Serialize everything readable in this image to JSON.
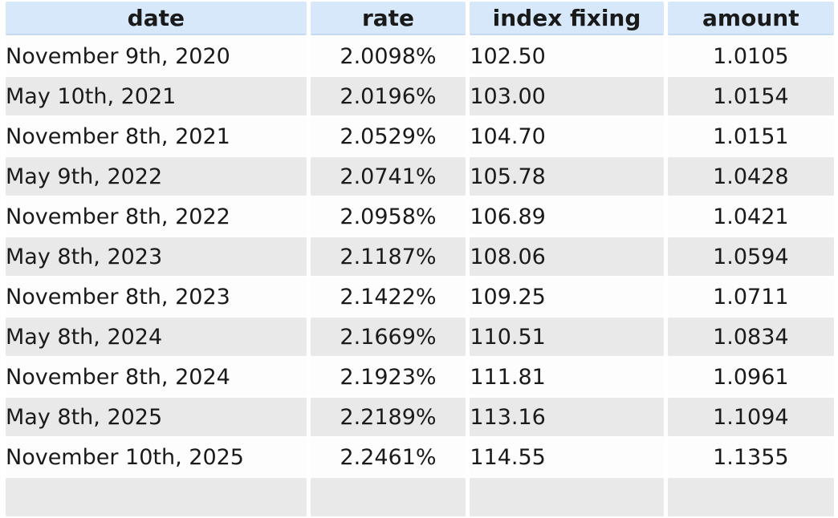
{
  "chart_data": {
    "type": "table",
    "columns": [
      "date",
      "rate",
      "index fixing",
      "amount"
    ],
    "column_keys": [
      "date",
      "rate",
      "index-fixing",
      "amount"
    ],
    "rows": [
      [
        "November 9th, 2020",
        "2.0098%",
        "102.50",
        "1.0105"
      ],
      [
        "May 10th, 2021",
        "2.0196%",
        "103.00",
        "1.0154"
      ],
      [
        "November 8th, 2021",
        "2.0529%",
        "104.70",
        "1.0151"
      ],
      [
        "May 9th, 2022",
        "2.0741%",
        "105.78",
        "1.0428"
      ],
      [
        "November 8th, 2022",
        "2.0958%",
        "106.89",
        "1.0421"
      ],
      [
        "May 8th, 2023",
        "2.1187%",
        "108.06",
        "1.0594"
      ],
      [
        "November 8th, 2023",
        "2.1422%",
        "109.25",
        "1.0711"
      ],
      [
        "May 8th, 2024",
        "2.1669%",
        "110.51",
        "1.0834"
      ],
      [
        "November 8th, 2024",
        "2.1923%",
        "111.81",
        "1.0961"
      ],
      [
        "May 8th, 2025",
        "2.2189%",
        "113.16",
        "1.1094"
      ],
      [
        "November 10th, 2025",
        "2.2461%",
        "114.55",
        "1.1355"
      ]
    ],
    "layout": {
      "zebra_striping": true,
      "header_row": true,
      "next_row_partially_visible": true
    },
    "colors": {
      "header_bg": "#d7e8fa",
      "header_border": "#c5daee",
      "row_bg": "#fdfdfd",
      "row_alt_bg": "#e9e9e9",
      "text": "#1a1a1a"
    }
  }
}
